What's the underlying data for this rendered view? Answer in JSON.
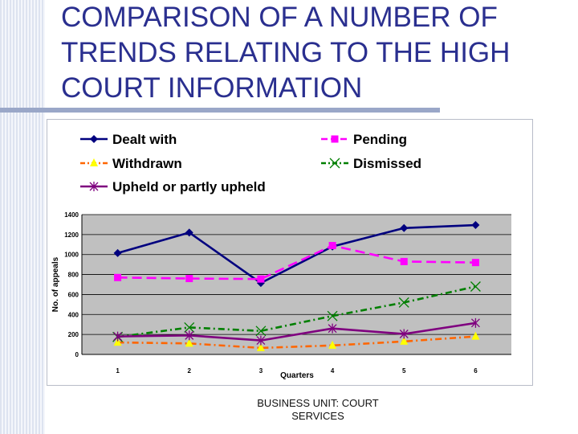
{
  "slide": {
    "title": "COMPARISON OF A NUMBER OF TRENDS RELATING TO THE HIGH COURT INFORMATION",
    "footer": "BUSINESS UNIT: COURT SERVICES"
  },
  "colors": {
    "title": "#2a2f8f",
    "plot_bg": "#c0c0c0",
    "grid": "#000000"
  },
  "chart_data": {
    "type": "line",
    "title": "",
    "xlabel": "Quarters",
    "ylabel": "No. of appeals",
    "x": [
      1,
      2,
      3,
      4,
      5,
      6
    ],
    "ylim": [
      0,
      1400
    ],
    "yticks": [
      0,
      200,
      400,
      600,
      800,
      1000,
      1200,
      1400
    ],
    "grid": true,
    "legend_position": "top",
    "series": [
      {
        "name": "Dealt with",
        "values": [
          1015,
          1220,
          715,
          1080,
          1265,
          1295
        ],
        "color": "#00007f",
        "marker": "diamond",
        "dash": "solid"
      },
      {
        "name": "Pending",
        "values": [
          770,
          760,
          755,
          1090,
          930,
          920
        ],
        "color": "#ff00ff",
        "marker": "square",
        "dash": "long-dash"
      },
      {
        "name": "Withdrawn",
        "values": [
          120,
          110,
          65,
          90,
          130,
          180
        ],
        "color": "#ff6600",
        "marker": "triangle",
        "dash": "dash-dot"
      },
      {
        "name": "Dismissed",
        "values": [
          175,
          270,
          235,
          385,
          520,
          680
        ],
        "color": "#007f00",
        "marker": "x",
        "dash": "dash-dot"
      },
      {
        "name": "Upheld or partly upheld",
        "values": [
          180,
          190,
          140,
          260,
          205,
          315
        ],
        "color": "#7f007f",
        "marker": "asterisk",
        "dash": "solid"
      }
    ]
  }
}
